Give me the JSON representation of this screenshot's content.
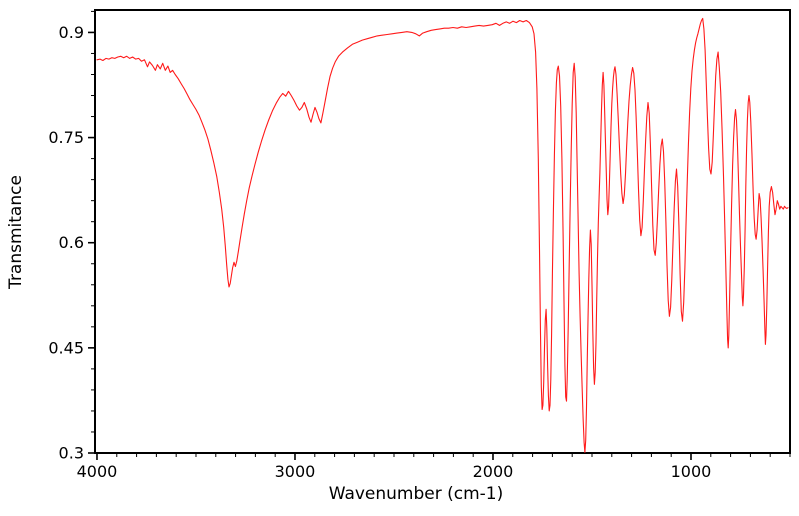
{
  "chart_data": {
    "type": "line",
    "title": "",
    "xlabel": "Wavenumber (cm-1)",
    "ylabel": "Transmitance",
    "grid": false,
    "legend_position": "none",
    "line_color": "#ff1a1a",
    "axis_color": "#000000",
    "background_color": "#ffffff",
    "x_axis": {
      "min": 500,
      "max": 4010,
      "reversed": true,
      "major_ticks": [
        4000,
        3000,
        2000,
        1000
      ],
      "major_tick_labels": [
        "4000",
        "3000",
        "2000",
        "1000"
      ],
      "minor_tick_step": 100
    },
    "y_axis": {
      "min": 0.3,
      "max": 0.932,
      "major_ticks": [
        0.3,
        0.45,
        0.6,
        0.75,
        0.9
      ],
      "major_tick_labels": [
        "0.3",
        "0.45",
        "0.6",
        "0.75",
        "0.9"
      ],
      "minor_tick_step": 0.03
    },
    "points": [
      [
        4000,
        0.861
      ],
      [
        3985,
        0.862
      ],
      [
        3970,
        0.86
      ],
      [
        3955,
        0.863
      ],
      [
        3940,
        0.862
      ],
      [
        3925,
        0.864
      ],
      [
        3910,
        0.863
      ],
      [
        3895,
        0.865
      ],
      [
        3880,
        0.866
      ],
      [
        3865,
        0.864
      ],
      [
        3850,
        0.866
      ],
      [
        3835,
        0.863
      ],
      [
        3820,
        0.865
      ],
      [
        3805,
        0.862
      ],
      [
        3790,
        0.863
      ],
      [
        3775,
        0.859
      ],
      [
        3760,
        0.861
      ],
      [
        3745,
        0.851
      ],
      [
        3735,
        0.858
      ],
      [
        3720,
        0.853
      ],
      [
        3705,
        0.846
      ],
      [
        3695,
        0.854
      ],
      [
        3680,
        0.848
      ],
      [
        3668,
        0.856
      ],
      [
        3655,
        0.846
      ],
      [
        3642,
        0.852
      ],
      [
        3630,
        0.843
      ],
      [
        3618,
        0.846
      ],
      [
        3605,
        0.84
      ],
      [
        3590,
        0.834
      ],
      [
        3575,
        0.827
      ],
      [
        3560,
        0.82
      ],
      [
        3545,
        0.812
      ],
      [
        3530,
        0.804
      ],
      [
        3515,
        0.797
      ],
      [
        3500,
        0.79
      ],
      [
        3485,
        0.782
      ],
      [
        3470,
        0.772
      ],
      [
        3455,
        0.761
      ],
      [
        3440,
        0.748
      ],
      [
        3425,
        0.732
      ],
      [
        3410,
        0.714
      ],
      [
        3395,
        0.694
      ],
      [
        3382,
        0.672
      ],
      [
        3370,
        0.648
      ],
      [
        3360,
        0.622
      ],
      [
        3352,
        0.595
      ],
      [
        3345,
        0.568
      ],
      [
        3339,
        0.548
      ],
      [
        3333,
        0.537
      ],
      [
        3327,
        0.542
      ],
      [
        3321,
        0.553
      ],
      [
        3315,
        0.564
      ],
      [
        3308,
        0.572
      ],
      [
        3301,
        0.566
      ],
      [
        3294,
        0.574
      ],
      [
        3286,
        0.588
      ],
      [
        3277,
        0.604
      ],
      [
        3267,
        0.622
      ],
      [
        3256,
        0.641
      ],
      [
        3244,
        0.66
      ],
      [
        3231,
        0.678
      ],
      [
        3217,
        0.695
      ],
      [
        3202,
        0.712
      ],
      [
        3186,
        0.729
      ],
      [
        3169,
        0.745
      ],
      [
        3151,
        0.761
      ],
      [
        3133,
        0.775
      ],
      [
        3114,
        0.788
      ],
      [
        3095,
        0.799
      ],
      [
        3078,
        0.807
      ],
      [
        3062,
        0.813
      ],
      [
        3047,
        0.809
      ],
      [
        3033,
        0.816
      ],
      [
        3019,
        0.81
      ],
      [
        3005,
        0.803
      ],
      [
        2991,
        0.795
      ],
      [
        2977,
        0.789
      ],
      [
        2965,
        0.793
      ],
      [
        2953,
        0.8
      ],
      [
        2941,
        0.791
      ],
      [
        2929,
        0.779
      ],
      [
        2919,
        0.772
      ],
      [
        2909,
        0.783
      ],
      [
        2899,
        0.793
      ],
      [
        2889,
        0.786
      ],
      [
        2879,
        0.777
      ],
      [
        2869,
        0.771
      ],
      [
        2859,
        0.785
      ],
      [
        2849,
        0.8
      ],
      [
        2836,
        0.82
      ],
      [
        2823,
        0.837
      ],
      [
        2810,
        0.849
      ],
      [
        2797,
        0.858
      ],
      [
        2780,
        0.866
      ],
      [
        2760,
        0.872
      ],
      [
        2735,
        0.878
      ],
      [
        2710,
        0.883
      ],
      [
        2685,
        0.886
      ],
      [
        2660,
        0.889
      ],
      [
        2635,
        0.891
      ],
      [
        2610,
        0.893
      ],
      [
        2585,
        0.895
      ],
      [
        2560,
        0.896
      ],
      [
        2535,
        0.897
      ],
      [
        2510,
        0.898
      ],
      [
        2485,
        0.899
      ],
      [
        2460,
        0.9
      ],
      [
        2435,
        0.901
      ],
      [
        2410,
        0.9
      ],
      [
        2390,
        0.898
      ],
      [
        2372,
        0.895
      ],
      [
        2355,
        0.899
      ],
      [
        2335,
        0.901
      ],
      [
        2312,
        0.903
      ],
      [
        2290,
        0.904
      ],
      [
        2268,
        0.905
      ],
      [
        2246,
        0.906
      ],
      [
        2224,
        0.906
      ],
      [
        2202,
        0.907
      ],
      [
        2180,
        0.906
      ],
      [
        2158,
        0.908
      ],
      [
        2136,
        0.907
      ],
      [
        2114,
        0.908
      ],
      [
        2092,
        0.909
      ],
      [
        2070,
        0.91
      ],
      [
        2048,
        0.909
      ],
      [
        2026,
        0.91
      ],
      [
        2004,
        0.911
      ],
      [
        1985,
        0.913
      ],
      [
        1967,
        0.91
      ],
      [
        1950,
        0.913
      ],
      [
        1933,
        0.915
      ],
      [
        1916,
        0.913
      ],
      [
        1899,
        0.916
      ],
      [
        1882,
        0.914
      ],
      [
        1865,
        0.917
      ],
      [
        1848,
        0.915
      ],
      [
        1832,
        0.917
      ],
      [
        1816,
        0.914
      ],
      [
        1802,
        0.908
      ],
      [
        1793,
        0.898
      ],
      [
        1785,
        0.872
      ],
      [
        1778,
        0.82
      ],
      [
        1771,
        0.72
      ],
      [
        1765,
        0.59
      ],
      [
        1760,
        0.47
      ],
      [
        1756,
        0.395
      ],
      [
        1752,
        0.362
      ],
      [
        1748,
        0.368
      ],
      [
        1744,
        0.4
      ],
      [
        1740,
        0.45
      ],
      [
        1736,
        0.49
      ],
      [
        1732,
        0.505
      ],
      [
        1728,
        0.478
      ],
      [
        1724,
        0.425
      ],
      [
        1720,
        0.382
      ],
      [
        1716,
        0.36
      ],
      [
        1712,
        0.368
      ],
      [
        1708,
        0.405
      ],
      [
        1704,
        0.47
      ],
      [
        1700,
        0.555
      ],
      [
        1695,
        0.645
      ],
      [
        1690,
        0.725
      ],
      [
        1685,
        0.788
      ],
      [
        1680,
        0.828
      ],
      [
        1675,
        0.847
      ],
      [
        1670,
        0.852
      ],
      [
        1664,
        0.838
      ],
      [
        1658,
        0.795
      ],
      [
        1652,
        0.72
      ],
      [
        1646,
        0.612
      ],
      [
        1641,
        0.505
      ],
      [
        1637,
        0.425
      ],
      [
        1633,
        0.38
      ],
      [
        1629,
        0.374
      ],
      [
        1625,
        0.405
      ],
      [
        1620,
        0.478
      ],
      [
        1615,
        0.568
      ],
      [
        1610,
        0.655
      ],
      [
        1605,
        0.732
      ],
      [
        1600,
        0.798
      ],
      [
        1595,
        0.843
      ],
      [
        1590,
        0.856
      ],
      [
        1585,
        0.836
      ],
      [
        1580,
        0.785
      ],
      [
        1575,
        0.714
      ],
      [
        1570,
        0.635
      ],
      [
        1565,
        0.556
      ],
      [
        1560,
        0.495
      ],
      [
        1555,
        0.443
      ],
      [
        1550,
        0.395
      ],
      [
        1545,
        0.35
      ],
      [
        1540,
        0.315
      ],
      [
        1536,
        0.301
      ],
      [
        1532,
        0.318
      ],
      [
        1528,
        0.365
      ],
      [
        1524,
        0.428
      ],
      [
        1520,
        0.49
      ],
      [
        1516,
        0.548
      ],
      [
        1512,
        0.592
      ],
      [
        1508,
        0.618
      ],
      [
        1504,
        0.598
      ],
      [
        1500,
        0.54
      ],
      [
        1496,
        0.474
      ],
      [
        1492,
        0.422
      ],
      [
        1488,
        0.398
      ],
      [
        1484,
        0.415
      ],
      [
        1480,
        0.458
      ],
      [
        1476,
        0.518
      ],
      [
        1472,
        0.578
      ],
      [
        1468,
        0.628
      ],
      [
        1464,
        0.665
      ],
      [
        1460,
        0.7
      ],
      [
        1456,
        0.745
      ],
      [
        1452,
        0.79
      ],
      [
        1448,
        0.825
      ],
      [
        1444,
        0.843
      ],
      [
        1440,
        0.825
      ],
      [
        1436,
        0.785
      ],
      [
        1432,
        0.742
      ],
      [
        1428,
        0.7
      ],
      [
        1424,
        0.662
      ],
      [
        1420,
        0.64
      ],
      [
        1416,
        0.652
      ],
      [
        1412,
        0.685
      ],
      [
        1408,
        0.725
      ],
      [
        1404,
        0.765
      ],
      [
        1400,
        0.798
      ],
      [
        1396,
        0.82
      ],
      [
        1392,
        0.836
      ],
      [
        1388,
        0.846
      ],
      [
        1384,
        0.851
      ],
      [
        1379,
        0.84
      ],
      [
        1373,
        0.812
      ],
      [
        1367,
        0.775
      ],
      [
        1361,
        0.735
      ],
      [
        1355,
        0.698
      ],
      [
        1349,
        0.67
      ],
      [
        1343,
        0.656
      ],
      [
        1337,
        0.668
      ],
      [
        1331,
        0.698
      ],
      [
        1325,
        0.736
      ],
      [
        1319,
        0.772
      ],
      [
        1313,
        0.802
      ],
      [
        1307,
        0.824
      ],
      [
        1301,
        0.84
      ],
      [
        1295,
        0.85
      ],
      [
        1289,
        0.842
      ],
      [
        1283,
        0.818
      ],
      [
        1277,
        0.78
      ],
      [
        1271,
        0.73
      ],
      [
        1265,
        0.676
      ],
      [
        1259,
        0.632
      ],
      [
        1253,
        0.61
      ],
      [
        1247,
        0.622
      ],
      [
        1241,
        0.66
      ],
      [
        1235,
        0.706
      ],
      [
        1229,
        0.748
      ],
      [
        1223,
        0.78
      ],
      [
        1217,
        0.8
      ],
      [
        1211,
        0.785
      ],
      [
        1205,
        0.74
      ],
      [
        1199,
        0.68
      ],
      [
        1193,
        0.625
      ],
      [
        1187,
        0.59
      ],
      [
        1181,
        0.582
      ],
      [
        1175,
        0.6
      ],
      [
        1169,
        0.636
      ],
      [
        1163,
        0.676
      ],
      [
        1157,
        0.712
      ],
      [
        1151,
        0.738
      ],
      [
        1145,
        0.748
      ],
      [
        1139,
        0.73
      ],
      [
        1133,
        0.688
      ],
      [
        1127,
        0.63
      ],
      [
        1121,
        0.568
      ],
      [
        1115,
        0.518
      ],
      [
        1109,
        0.495
      ],
      [
        1103,
        0.508
      ],
      [
        1097,
        0.548
      ],
      [
        1091,
        0.6
      ],
      [
        1085,
        0.65
      ],
      [
        1079,
        0.688
      ],
      [
        1073,
        0.705
      ],
      [
        1067,
        0.68
      ],
      [
        1061,
        0.625
      ],
      [
        1055,
        0.555
      ],
      [
        1049,
        0.502
      ],
      [
        1043,
        0.488
      ],
      [
        1037,
        0.515
      ],
      [
        1031,
        0.565
      ],
      [
        1025,
        0.625
      ],
      [
        1019,
        0.685
      ],
      [
        1013,
        0.74
      ],
      [
        1007,
        0.785
      ],
      [
        1001,
        0.82
      ],
      [
        995,
        0.845
      ],
      [
        989,
        0.862
      ],
      [
        983,
        0.875
      ],
      [
        977,
        0.885
      ],
      [
        971,
        0.892
      ],
      [
        965,
        0.898
      ],
      [
        959,
        0.905
      ],
      [
        953,
        0.912
      ],
      [
        947,
        0.917
      ],
      [
        941,
        0.92
      ],
      [
        935,
        0.905
      ],
      [
        929,
        0.875
      ],
      [
        923,
        0.83
      ],
      [
        917,
        0.78
      ],
      [
        911,
        0.735
      ],
      [
        905,
        0.705
      ],
      [
        899,
        0.698
      ],
      [
        893,
        0.715
      ],
      [
        887,
        0.755
      ],
      [
        881,
        0.8
      ],
      [
        875,
        0.838
      ],
      [
        869,
        0.862
      ],
      [
        863,
        0.872
      ],
      [
        857,
        0.85
      ],
      [
        850,
        0.815
      ],
      [
        843,
        0.76
      ],
      [
        836,
        0.695
      ],
      [
        830,
        0.63
      ],
      [
        824,
        0.565
      ],
      [
        819,
        0.505
      ],
      [
        815,
        0.462
      ],
      [
        812,
        0.45
      ],
      [
        809,
        0.468
      ],
      [
        805,
        0.52
      ],
      [
        800,
        0.59
      ],
      [
        795,
        0.655
      ],
      [
        790,
        0.71
      ],
      [
        785,
        0.75
      ],
      [
        780,
        0.778
      ],
      [
        775,
        0.79
      ],
      [
        770,
        0.775
      ],
      [
        765,
        0.738
      ],
      [
        760,
        0.69
      ],
      [
        755,
        0.64
      ],
      [
        750,
        0.595
      ],
      [
        745,
        0.555
      ],
      [
        741,
        0.522
      ],
      [
        738,
        0.51
      ],
      [
        735,
        0.525
      ],
      [
        731,
        0.565
      ],
      [
        727,
        0.62
      ],
      [
        723,
        0.68
      ],
      [
        719,
        0.735
      ],
      [
        715,
        0.775
      ],
      [
        711,
        0.8
      ],
      [
        707,
        0.81
      ],
      [
        703,
        0.8
      ],
      [
        698,
        0.772
      ],
      [
        692,
        0.725
      ],
      [
        686,
        0.672
      ],
      [
        681,
        0.635
      ],
      [
        676,
        0.612
      ],
      [
        671,
        0.605
      ],
      [
        666,
        0.618
      ],
      [
        661,
        0.645
      ],
      [
        656,
        0.67
      ],
      [
        651,
        0.662
      ],
      [
        646,
        0.635
      ],
      [
        641,
        0.6
      ],
      [
        636,
        0.56
      ],
      [
        631,
        0.515
      ],
      [
        627,
        0.475
      ],
      [
        624,
        0.455
      ],
      [
        621,
        0.468
      ],
      [
        617,
        0.51
      ],
      [
        613,
        0.565
      ],
      [
        609,
        0.615
      ],
      [
        605,
        0.652
      ],
      [
        600,
        0.672
      ],
      [
        594,
        0.68
      ],
      [
        588,
        0.672
      ],
      [
        582,
        0.655
      ],
      [
        576,
        0.64
      ],
      [
        570,
        0.648
      ],
      [
        564,
        0.66
      ],
      [
        558,
        0.655
      ],
      [
        552,
        0.648
      ],
      [
        546,
        0.652
      ],
      [
        540,
        0.65
      ],
      [
        534,
        0.648
      ],
      [
        528,
        0.652
      ],
      [
        522,
        0.65
      ],
      [
        516,
        0.649
      ],
      [
        510,
        0.65
      ]
    ]
  }
}
